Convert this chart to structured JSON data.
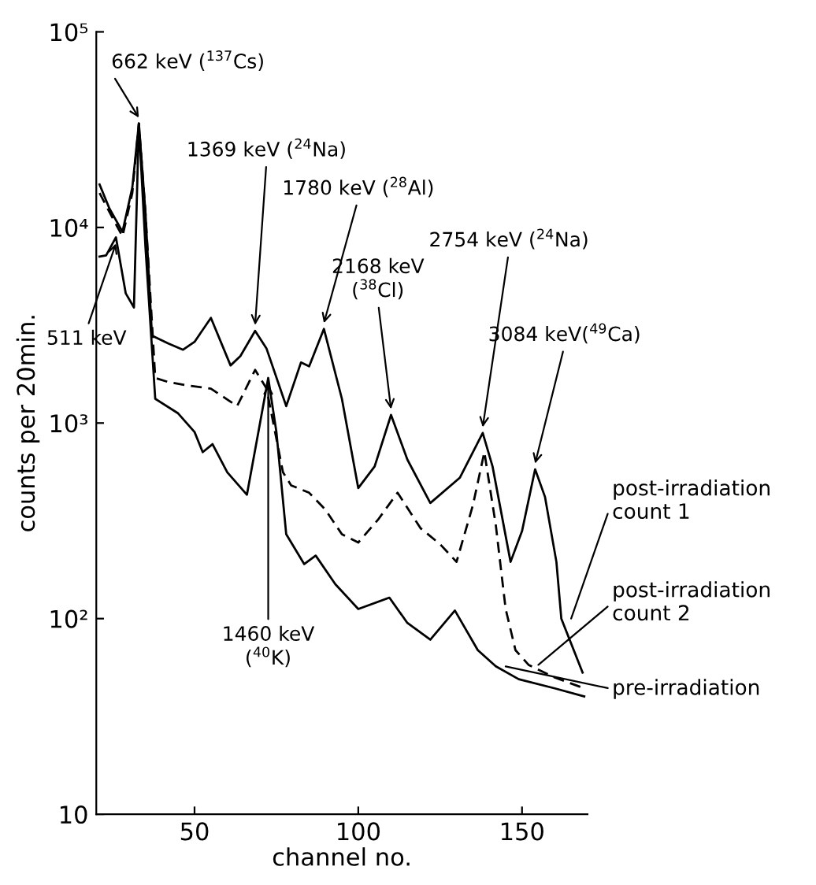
{
  "chart_data": {
    "type": "line",
    "xlabel": "channel no.",
    "ylabel": "counts per 20min.",
    "log": "y",
    "grid": false,
    "legend": "right",
    "marker": "none",
    "xlim": [
      20,
      170
    ],
    "xticks": [
      50,
      100,
      150
    ],
    "ylim": [
      10,
      100000
    ],
    "yticks": [
      {
        "value": 10,
        "label": "10"
      },
      {
        "value": 100,
        "label": "10²"
      },
      {
        "value": 1000,
        "label": "10³"
      },
      {
        "value": 10000,
        "label": "10⁴"
      },
      {
        "value": 100000,
        "label": "10⁵"
      }
    ],
    "series": [
      {
        "name": "post-irradiation\ncount 1",
        "color": "#000000",
        "line_style": "solid",
        "x": [
          21,
          24,
          28,
          31,
          33,
          35,
          37,
          42,
          46.5,
          50,
          55,
          61,
          64,
          68.5,
          72,
          78,
          82.5,
          85,
          89.5,
          95,
          100,
          105,
          110,
          115,
          122,
          131,
          138,
          141,
          146.5,
          150,
          154,
          157,
          160.5,
          162,
          168.5
        ],
        "values": [
          16600,
          12500,
          9500,
          16000,
          34000,
          12000,
          2800,
          2550,
          2370,
          2600,
          3450,
          1970,
          2200,
          2960,
          2400,
          1220,
          2040,
          1950,
          3030,
          1330,
          465,
          600,
          1100,
          650,
          390,
          525,
          890,
          600,
          195,
          280,
          580,
          420,
          195,
          100,
          53
        ]
      },
      {
        "name": "post-irradiation\ncount 2",
        "color": "#000000",
        "line_style": "dashed",
        "x": [
          21,
          24,
          28,
          31,
          33,
          35,
          38,
          42,
          47.5,
          55,
          63,
          68.5,
          72,
          77,
          79.5,
          85,
          90,
          95,
          100,
          106,
          112,
          119,
          125,
          130,
          135,
          138.5,
          142,
          145,
          148,
          152,
          160,
          169
        ],
        "values": [
          15000,
          12000,
          9000,
          15000,
          34000,
          12000,
          1700,
          1620,
          1560,
          1500,
          1220,
          1870,
          1500,
          560,
          480,
          440,
          360,
          270,
          245,
          320,
          440,
          290,
          240,
          195,
          380,
          710,
          300,
          112,
          69,
          58,
          50,
          44
        ]
      },
      {
        "name": "pre-irradiation",
        "color": "#000000",
        "line_style": "solid",
        "x": [
          21,
          23,
          26,
          29,
          31.5,
          33,
          35,
          38,
          45,
          50,
          52.5,
          55.5,
          60,
          66,
          70,
          72.5,
          75,
          78,
          83.5,
          87,
          93,
          100,
          109.5,
          115,
          122,
          129.5,
          136.5,
          142,
          149,
          160,
          169
        ],
        "values": [
          7100,
          7200,
          8900,
          4600,
          3900,
          34000,
          8000,
          1330,
          1120,
          900,
          710,
          780,
          560,
          430,
          1000,
          1700,
          900,
          270,
          190,
          210,
          150,
          112,
          128,
          95,
          78,
          110,
          69,
          57,
          49,
          44,
          40
        ]
      }
    ],
    "annotations": [
      {
        "text": "662 keV ($^{137}$Cs)",
        "x": 33,
        "y": 34000
      },
      {
        "text": "511 keV",
        "x": 26,
        "y": 8900
      },
      {
        "text": "1369 keV ($^{24}$Na)",
        "x": 68.5,
        "y": 2960
      },
      {
        "text": "1780 keV ($^{28}$Al)",
        "x": 89.5,
        "y": 3030
      },
      {
        "text": "2168 keV\n($^{38}$Cl)",
        "x": 110,
        "y": 1100
      },
      {
        "text": "2754 keV ($^{24}$Na)",
        "x": 138,
        "y": 890
      },
      {
        "text": "3084 keV($^{49}$Ca)",
        "x": 154,
        "y": 580
      },
      {
        "text": "1460 keV\n($^{40}$K)",
        "x": 72.5,
        "y": 1700
      }
    ]
  }
}
